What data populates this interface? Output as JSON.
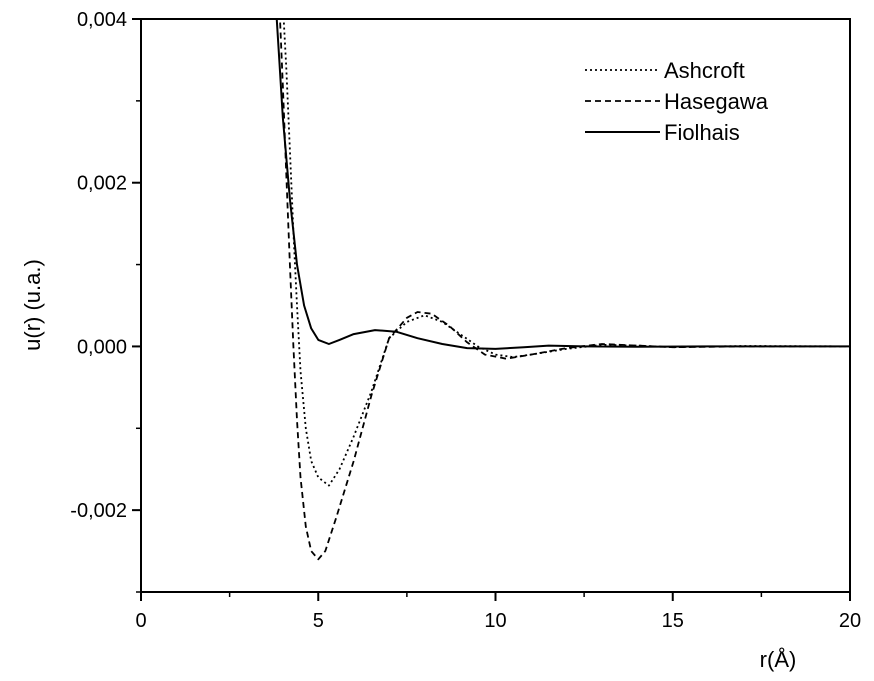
{
  "chart_data": {
    "type": "line",
    "title": "",
    "xlabel": "r(Å)",
    "ylabel": "u(r) (u.a.)",
    "xlim": [
      0,
      20
    ],
    "ylim": [
      -0.003,
      0.004
    ],
    "grid": false,
    "legend_position": "top-right",
    "x_ticks": [
      {
        "value": 0,
        "label": "0"
      },
      {
        "value": 5,
        "label": "5"
      },
      {
        "value": 10,
        "label": "10"
      },
      {
        "value": 15,
        "label": "15"
      },
      {
        "value": 20,
        "label": "20"
      }
    ],
    "y_ticks": [
      {
        "value": 0.004,
        "label": "0,004"
      },
      {
        "value": 0.002,
        "label": "0,002"
      },
      {
        "value": 0.0,
        "label": "0,000"
      },
      {
        "value": -0.002,
        "label": "-0,002"
      }
    ],
    "series": [
      {
        "name": "Ashcroft",
        "style": "dotted",
        "color": "#000000",
        "points": [
          [
            4.0,
            0.0042
          ],
          [
            4.1,
            0.0034
          ],
          [
            4.2,
            0.0024
          ],
          [
            4.3,
            0.0014
          ],
          [
            4.4,
            0.0005
          ],
          [
            4.5,
            -0.0003
          ],
          [
            4.65,
            -0.001
          ],
          [
            4.8,
            -0.0014
          ],
          [
            5.0,
            -0.0016
          ],
          [
            5.3,
            -0.0017
          ],
          [
            5.6,
            -0.0015
          ],
          [
            6.0,
            -0.0011
          ],
          [
            6.5,
            -0.00055
          ],
          [
            7.0,
            0.0001
          ],
          [
            7.5,
            0.0003
          ],
          [
            8.0,
            0.00038
          ],
          [
            8.5,
            0.0003
          ],
          [
            9.0,
            0.00015
          ],
          [
            9.5,
            0.0
          ],
          [
            10.0,
            -0.0001
          ],
          [
            10.5,
            -0.00013
          ],
          [
            11.0,
            -0.0001
          ],
          [
            12.0,
            -3e-05
          ],
          [
            13.0,
            2e-05
          ],
          [
            14.0,
            1e-05
          ],
          [
            15.0,
            -1e-05
          ],
          [
            17.0,
            5e-06
          ],
          [
            20.0,
            0.0
          ]
        ]
      },
      {
        "name": "Hasegawa",
        "style": "dashed",
        "color": "#000000",
        "points": [
          [
            3.9,
            0.0042
          ],
          [
            4.0,
            0.0032
          ],
          [
            4.1,
            0.0021
          ],
          [
            4.2,
            0.001
          ],
          [
            4.3,
            0.0
          ],
          [
            4.4,
            -0.0009
          ],
          [
            4.5,
            -0.0016
          ],
          [
            4.65,
            -0.0022
          ],
          [
            4.8,
            -0.0025
          ],
          [
            5.0,
            -0.0026
          ],
          [
            5.2,
            -0.0025
          ],
          [
            5.5,
            -0.0021
          ],
          [
            6.0,
            -0.0014
          ],
          [
            6.5,
            -0.0006
          ],
          [
            7.0,
            0.0001
          ],
          [
            7.5,
            0.00035
          ],
          [
            7.8,
            0.00042
          ],
          [
            8.2,
            0.0004
          ],
          [
            8.7,
            0.00025
          ],
          [
            9.2,
            5e-05
          ],
          [
            9.7,
            -0.0001
          ],
          [
            10.3,
            -0.00015
          ],
          [
            11.0,
            -0.0001
          ],
          [
            12.0,
            -2e-05
          ],
          [
            13.0,
            3e-05
          ],
          [
            14.0,
            1e-05
          ],
          [
            15.0,
            -1e-05
          ],
          [
            17.0,
            0.0
          ],
          [
            20.0,
            0.0
          ]
        ]
      },
      {
        "name": "Fiolhais",
        "style": "solid",
        "color": "#000000",
        "points": [
          [
            3.8,
            0.0042
          ],
          [
            3.9,
            0.0035
          ],
          [
            4.0,
            0.0028
          ],
          [
            4.2,
            0.0018
          ],
          [
            4.4,
            0.001
          ],
          [
            4.6,
            0.0005
          ],
          [
            4.8,
            0.00022
          ],
          [
            5.0,
            8e-05
          ],
          [
            5.3,
            3e-05
          ],
          [
            5.6,
            8e-05
          ],
          [
            6.0,
            0.00015
          ],
          [
            6.6,
            0.0002
          ],
          [
            7.2,
            0.00018
          ],
          [
            7.8,
            0.0001
          ],
          [
            8.5,
            3e-05
          ],
          [
            9.2,
            -2e-05
          ],
          [
            10.0,
            -3e-05
          ],
          [
            10.8,
            -1e-05
          ],
          [
            11.5,
            1e-05
          ],
          [
            12.5,
            0.0
          ],
          [
            14.0,
            -5e-06
          ],
          [
            16.0,
            0.0
          ],
          [
            20.0,
            0.0
          ]
        ]
      }
    ]
  }
}
